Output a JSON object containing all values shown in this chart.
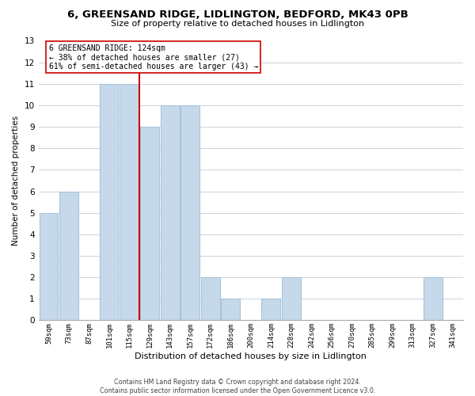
{
  "title1": "6, GREENSAND RIDGE, LIDLINGTON, BEDFORD, MK43 0PB",
  "title2": "Size of property relative to detached houses in Lidlington",
  "xlabel": "Distribution of detached houses by size in Lidlington",
  "ylabel": "Number of detached properties",
  "bar_labels": [
    "59sqm",
    "73sqm",
    "87sqm",
    "101sqm",
    "115sqm",
    "129sqm",
    "143sqm",
    "157sqm",
    "172sqm",
    "186sqm",
    "200sqm",
    "214sqm",
    "228sqm",
    "242sqm",
    "256sqm",
    "270sqm",
    "285sqm",
    "299sqm",
    "313sqm",
    "327sqm",
    "341sqm"
  ],
  "bar_values": [
    5,
    6,
    0,
    11,
    11,
    9,
    10,
    10,
    2,
    1,
    0,
    1,
    2,
    0,
    0,
    0,
    0,
    0,
    0,
    2,
    0
  ],
  "bar_color": "#c5d9ea",
  "bar_edge_color": "#a8c4de",
  "property_line_x": 4.5,
  "property_line_color": "#cc0000",
  "annotation_title": "6 GREENSAND RIDGE: 124sqm",
  "annotation_line1": "← 38% of detached houses are smaller (27)",
  "annotation_line2": "61% of semi-detached houses are larger (43) →",
  "annotation_box_color": "#ffffff",
  "annotation_box_edge": "#cc0000",
  "ylim": [
    0,
    13
  ],
  "yticks": [
    0,
    1,
    2,
    3,
    4,
    5,
    6,
    7,
    8,
    9,
    10,
    11,
    12,
    13
  ],
  "footer1": "Contains HM Land Registry data © Crown copyright and database right 2024.",
  "footer2": "Contains public sector information licensed under the Open Government Licence v3.0.",
  "bg_color": "#ffffff",
  "grid_color": "#c8d4dc"
}
